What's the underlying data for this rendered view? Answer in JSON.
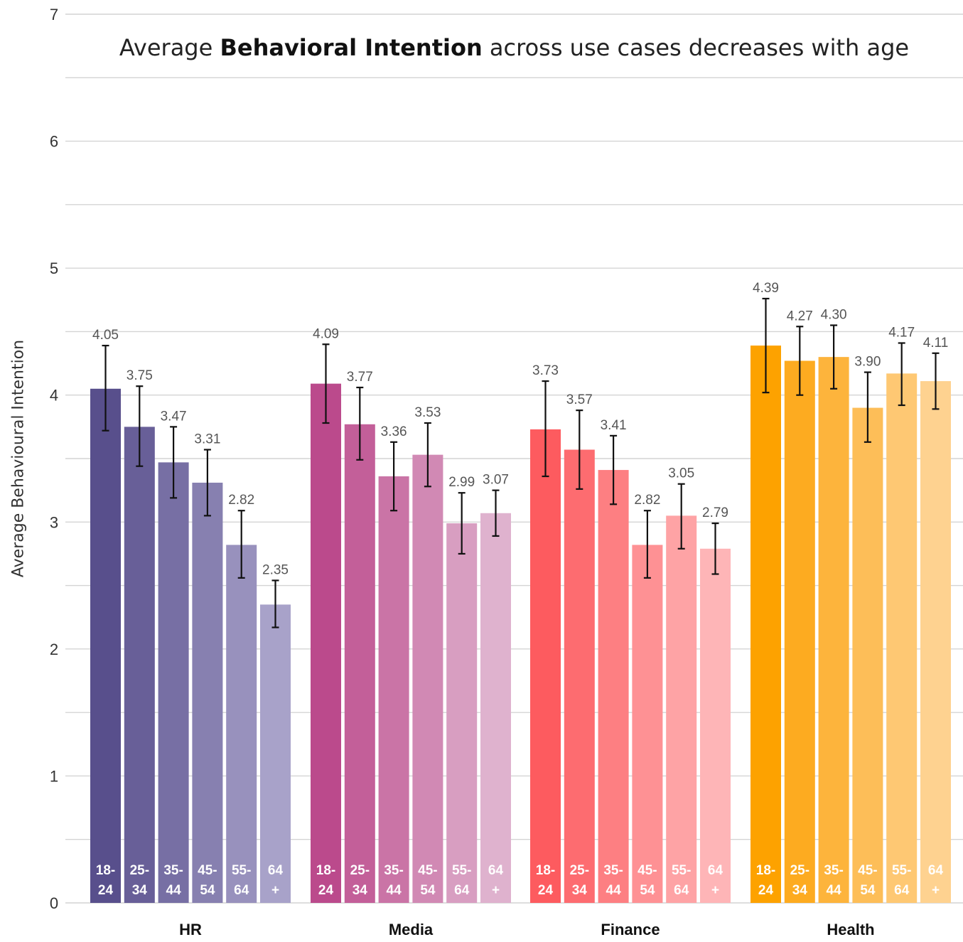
{
  "chart_data": {
    "type": "bar",
    "title_parts": {
      "before": "Average ",
      "bold": "Behavioral Intention",
      "after": " across use cases decreases with age"
    },
    "ylabel": "Average Behavioural Intention",
    "xlabel": "",
    "ylim": [
      0,
      7
    ],
    "yticks": [
      0,
      1,
      2,
      3,
      4,
      5,
      6,
      7
    ],
    "grid": true,
    "categories": [
      "HR",
      "Media",
      "Finance",
      "Health"
    ],
    "age_groups": [
      {
        "line1": "18-",
        "line2": "24"
      },
      {
        "line1": "25-",
        "line2": "34"
      },
      {
        "line1": "35-",
        "line2": "44"
      },
      {
        "line1": "45-",
        "line2": "54"
      },
      {
        "line1": "55-",
        "line2": "64"
      },
      {
        "line1": "64",
        "line2": "+"
      }
    ],
    "groups": [
      {
        "name": "HR",
        "values": [
          4.05,
          3.75,
          3.47,
          3.31,
          2.82,
          2.35
        ],
        "labels": [
          "4.05",
          "3.75",
          "3.47",
          "3.31",
          "2.82",
          "2.35"
        ],
        "err_low": [
          3.72,
          3.44,
          3.19,
          3.05,
          2.56,
          2.17
        ],
        "err_high": [
          4.39,
          4.07,
          3.75,
          3.57,
          3.09,
          2.54
        ],
        "colors": [
          "#584f8c",
          "#685f98",
          "#776fa4",
          "#8780b0",
          "#9891bd",
          "#a8a2c9"
        ]
      },
      {
        "name": "Media",
        "values": [
          4.09,
          3.77,
          3.36,
          3.53,
          2.99,
          3.07
        ],
        "labels": [
          "4.09",
          "3.77",
          "3.36",
          "3.53",
          "2.99",
          "3.07"
        ],
        "err_low": [
          3.78,
          3.49,
          3.09,
          3.28,
          2.75,
          2.89
        ],
        "err_high": [
          4.4,
          4.06,
          3.63,
          3.78,
          3.23,
          3.25
        ],
        "colors": [
          "#bb4a8c",
          "#c35f99",
          "#ca74a6",
          "#d189b4",
          "#d89ec1",
          "#dfb2ce"
        ]
      },
      {
        "name": "Finance",
        "values": [
          3.73,
          3.57,
          3.41,
          2.82,
          3.05,
          2.79
        ],
        "labels": [
          "3.73",
          "3.57",
          "3.41",
          "2.82",
          "3.05",
          "2.79"
        ],
        "err_low": [
          3.36,
          3.26,
          3.14,
          2.56,
          2.79,
          2.59
        ],
        "err_high": [
          4.11,
          3.88,
          3.68,
          3.09,
          3.3,
          2.99
        ],
        "colors": [
          "#fd5b5f",
          "#fd6c70",
          "#fd7f82",
          "#fe9194",
          "#fea3a5",
          "#feb5b7"
        ]
      },
      {
        "name": "Health",
        "values": [
          4.39,
          4.27,
          4.3,
          3.9,
          4.17,
          4.11
        ],
        "labels": [
          "4.39",
          "4.27",
          "4.30",
          "3.90",
          "4.17",
          "4.11"
        ],
        "err_low": [
          4.02,
          4.0,
          4.05,
          3.63,
          3.92,
          3.89
        ],
        "err_high": [
          4.76,
          4.54,
          4.55,
          4.18,
          4.41,
          4.33
        ],
        "colors": [
          "#fda200",
          "#fdab20",
          "#fdb43c",
          "#fdbe58",
          "#fec873",
          "#fed290"
        ]
      }
    ]
  }
}
